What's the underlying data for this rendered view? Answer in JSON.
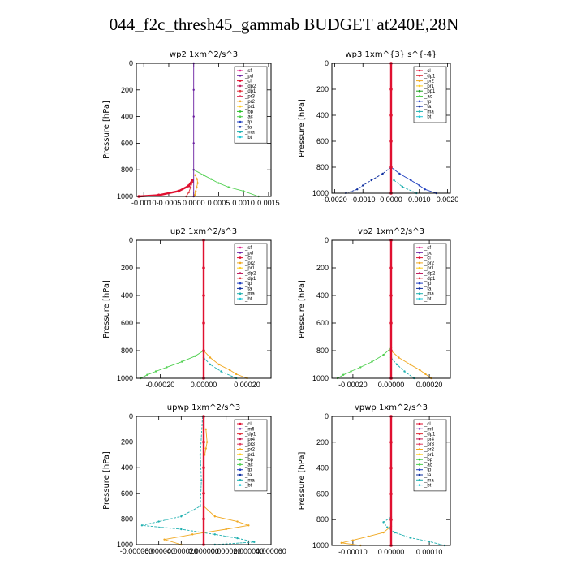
{
  "page": {
    "title": "044_f2c_thresh45_gammab  BUDGET at240E,28N"
  },
  "colors": {
    "sf": "#e0208a",
    "pd": "#6a1fa0",
    "cl": "#e01030",
    "dp2": "#c02060",
    "dp1": "#e0303a",
    "pr4": "#c01850",
    "pr3": "#e04060",
    "pr2": "#f0a820",
    "pr1": "#ffcc20",
    "bp": "#28c028",
    "bp1": "#20a020",
    "ac": "#50d050",
    "tp": "#2040c0",
    "ta": "#1030a0",
    "ma": "#20b0b0",
    "bt": "#20c8d8",
    "mfl": "#7a30b0"
  },
  "chart_data": [
    {
      "type": "line",
      "title": "wp2  1xm^2/s^3",
      "ylabel": "Pressure [hPa]",
      "ylim": [
        1000,
        0
      ],
      "yticks": [
        0,
        200,
        400,
        600,
        800,
        1000
      ],
      "xlim": [
        -0.00115,
        0.00155
      ],
      "xticks": [
        -0.001,
        -0.0005,
        0.0,
        0.0005,
        0.001,
        0.0015
      ],
      "xtick_labels": [
        "-0.0010",
        "-0.0005",
        "0.0000",
        "0.0005",
        "0.0010",
        "0.0015"
      ],
      "legend": [
        "_sf",
        "_pd",
        "_cl",
        "_dp2",
        "_dp1",
        "_pr3",
        "_pr2",
        "_pr1",
        "_bp",
        "_ac",
        "_tp",
        "_ta",
        "_ma",
        "_bt"
      ],
      "series": [
        {
          "key": "pr2",
          "name": "_pr2",
          "y": [
            840,
            870,
            900,
            930,
            960,
            990,
            1000
          ],
          "x": [
            3e-05,
            7e-05,
            8e-05,
            6e-05,
            4e-05,
            2e-05,
            0.0
          ]
        },
        {
          "key": "ac",
          "name": "_ac",
          "y": [
            800,
            840,
            870,
            900,
            930,
            960,
            1000
          ],
          "x": [
            0.0,
            0.0002,
            0.00035,
            0.0005,
            0.0007,
            0.001,
            0.0013
          ]
        },
        {
          "key": "cl",
          "name": "_cl",
          "y": [
            880,
            920,
            960,
            990,
            1000
          ],
          "x": [
            -3e-05,
            -0.0001,
            -0.0003,
            -0.0007,
            -0.0011
          ]
        },
        {
          "key": "dp1",
          "name": "_dp1",
          "y": [
            890,
            930,
            970,
            1000
          ],
          "x": [
            -2e-05,
            -6e-05,
            -0.0001,
            -0.00015
          ]
        },
        {
          "key": "pd",
          "name": "_pd",
          "y": [
            0,
            200,
            400,
            600,
            800,
            1000
          ],
          "x": [
            0.0,
            0.0,
            0.0,
            0.0,
            0.0,
            0.0
          ]
        }
      ]
    },
    {
      "type": "line",
      "title": "wp3  1xm^{3} s^{-4}",
      "ylabel": "Pressure [hPa]",
      "ylim": [
        1000,
        0
      ],
      "yticks": [
        0,
        200,
        400,
        600,
        800,
        1000
      ],
      "xlim": [
        -0.0021,
        0.0021
      ],
      "xticks": [
        -0.002,
        -0.001,
        0.0,
        0.001,
        0.002
      ],
      "xtick_labels": [
        "-0.0020",
        "-0.0010",
        "0.0000",
        "0.0010",
        "0.0020"
      ],
      "legend": [
        "_cl",
        "_dp1",
        "_pr2",
        "_pr1",
        "_bp1",
        "_ac",
        "_tp",
        "_ta",
        "_ma",
        "_bt"
      ],
      "series": [
        {
          "key": "ta",
          "name": "_ta",
          "y": [
            800,
            850,
            900,
            940,
            970,
            1000
          ],
          "x": [
            0.0,
            -0.0003,
            -0.0007,
            -0.001,
            -0.0012,
            -0.0016
          ]
        },
        {
          "key": "tp",
          "name": "_tp",
          "y": [
            800,
            850,
            900,
            940,
            970,
            1000
          ],
          "x": [
            0.0,
            0.0003,
            0.0007,
            0.001,
            0.0012,
            0.0016
          ]
        },
        {
          "key": "ma",
          "name": "_ma",
          "y": [
            900,
            950,
            1000
          ],
          "x": [
            0.0001,
            0.0004,
            0.0009
          ]
        },
        {
          "key": "cl",
          "name": "_cl",
          "y": [
            0,
            200,
            400,
            600,
            800,
            1000
          ],
          "x": [
            0.0,
            0.0,
            0.0,
            0.0,
            0.0,
            0.0
          ]
        }
      ]
    },
    {
      "type": "line",
      "title": "up2  1xm^2/s^3",
      "ylabel": "Pressure [hPa]",
      "ylim": [
        1000,
        0
      ],
      "yticks": [
        0,
        200,
        400,
        600,
        800,
        1000
      ],
      "xlim": [
        -0.00031,
        0.00031
      ],
      "xticks": [
        -0.0002,
        0.0,
        0.0002
      ],
      "xtick_labels": [
        "-0.00020",
        "0.00000",
        "0.00020"
      ],
      "legend": [
        "_sf",
        "_pd",
        "_cl",
        "_pr2",
        "_pr1",
        "_dp2",
        "_dp1",
        "_tp",
        "_ta",
        "_ma",
        "_bt"
      ],
      "series": [
        {
          "key": "ac",
          "name": "_ac",
          "y": [
            800,
            840,
            880,
            920,
            950,
            975,
            1000
          ],
          "x": [
            0.0,
            -4e-05,
            -0.0001,
            -0.00017,
            -0.00022,
            -0.00026,
            -0.00029
          ]
        },
        {
          "key": "pr2",
          "name": "_pr2",
          "y": [
            800,
            850,
            900,
            940,
            970,
            1000
          ],
          "x": [
            0.0,
            3e-05,
            7e-05,
            0.00012,
            0.00015,
            0.0002
          ]
        },
        {
          "key": "ma",
          "name": "_ma",
          "y": [
            850,
            900,
            950,
            1000
          ],
          "x": [
            0.0,
            3e-05,
            8e-05,
            0.00015
          ]
        },
        {
          "key": "cl",
          "name": "_cl",
          "y": [
            0,
            200,
            400,
            600,
            800,
            1000
          ],
          "x": [
            0.0,
            0.0,
            0.0,
            0.0,
            0.0,
            0.0
          ]
        }
      ]
    },
    {
      "type": "line",
      "title": "vp2  1xm^2/s^3",
      "ylabel": "Pressure [hPa]",
      "ylim": [
        1000,
        0
      ],
      "yticks": [
        0,
        200,
        400,
        600,
        800,
        1000
      ],
      "xlim": [
        -0.00031,
        0.00031
      ],
      "xticks": [
        -0.0002,
        0.0,
        0.0002
      ],
      "xtick_labels": [
        "-0.00020",
        "0.00000",
        "0.00020"
      ],
      "legend": [
        "_sf",
        "_pd",
        "_cl",
        "_pr2",
        "_pr1",
        "_dp2",
        "_dp1",
        "_tp",
        "_ta",
        "_ma",
        "_bt"
      ],
      "series": [
        {
          "key": "ac",
          "name": "_ac",
          "y": [
            780,
            830,
            880,
            920,
            950,
            975,
            1000
          ],
          "x": [
            0.0,
            -4e-05,
            -0.0001,
            -0.00016,
            -0.00021,
            -0.00025,
            -0.00028
          ]
        },
        {
          "key": "pr2",
          "name": "_pr2",
          "y": [
            800,
            850,
            900,
            940,
            970,
            1000
          ],
          "x": [
            0.0,
            4e-05,
            0.0001,
            0.00015,
            0.00018,
            0.00021
          ]
        },
        {
          "key": "ma",
          "name": "_ma",
          "y": [
            850,
            900,
            950,
            1000
          ],
          "x": [
            0.0,
            3e-05,
            7e-05,
            0.00012
          ]
        },
        {
          "key": "cl",
          "name": "_cl",
          "y": [
            0,
            200,
            400,
            600,
            800,
            1000
          ],
          "x": [
            0.0,
            0.0,
            0.0,
            0.0,
            0.0,
            0.0
          ]
        }
      ]
    },
    {
      "type": "line",
      "title": "upwp  1xm^2/s^3",
      "ylabel": "Pressure [hPa]",
      "ylim": [
        1000,
        0
      ],
      "yticks": [
        0,
        200,
        400,
        600,
        800,
        1000
      ],
      "xlim": [
        -6e-05,
        6e-05
      ],
      "xticks": [
        -6e-05,
        -4e-05,
        -2e-05,
        0.0,
        2e-05,
        4e-05,
        6e-05
      ],
      "xtick_labels": [
        "-0.000060",
        "-0.000040",
        "-0.000020",
        "0.000000",
        "0.000020",
        "0.000040",
        "0.000060"
      ],
      "legend": [
        "_cl",
        "_mfl",
        "_dp1",
        "_pr4",
        "_pr3",
        "_pr2",
        "_pr1",
        "_bp",
        "_ac",
        "_tp",
        "_ta",
        "_ma",
        "_bt"
      ],
      "series": [
        {
          "key": "ma",
          "name": "_ma",
          "y": [
            0,
            300,
            500,
            700,
            780,
            820,
            850,
            880,
            920,
            950,
            980,
            1000
          ],
          "x": [
            -1e-06,
            -3e-06,
            -2e-06,
            -3e-06,
            -2e-05,
            -4e-05,
            -5.5e-05,
            -2e-05,
            1e-05,
            3e-05,
            4.5e-05,
            1e-05
          ]
        },
        {
          "key": "pr2",
          "name": "_pr2",
          "y": [
            700,
            780,
            820,
            850,
            880,
            920,
            960,
            1000
          ],
          "x": [
            0.0,
            1e-05,
            3e-05,
            4e-05,
            2e-05,
            -1e-05,
            -3.5e-05,
            -2e-05
          ]
        },
        {
          "key": "pr2",
          "name": "_pr2",
          "y": [
            100,
            200,
            250,
            300
          ],
          "x": [
            2e-06,
            3e-06,
            2e-06,
            1e-06
          ]
        },
        {
          "key": "cl",
          "name": "_cl",
          "y": [
            0,
            200,
            400,
            600,
            800,
            1000
          ],
          "x": [
            0.0,
            0.0,
            0.0,
            0.0,
            0.0,
            0.0
          ]
        }
      ]
    },
    {
      "type": "line",
      "title": "vpwp  1xm^2/s^3",
      "ylabel": "Pressure [hPa]",
      "ylim": [
        1000,
        0
      ],
      "yticks": [
        0,
        200,
        400,
        600,
        800,
        1000
      ],
      "xlim": [
        -0.000155,
        0.000155
      ],
      "xticks": [
        -0.0001,
        0.0,
        0.0001
      ],
      "xtick_labels": [
        "-0.00010",
        "0.00000",
        "0.00010"
      ],
      "legend": [
        "_cl",
        "_mfl",
        "_dp1",
        "_pr4",
        "_pr3",
        "_pr2",
        "_pr1",
        "_bp",
        "_ac",
        "_tp",
        "_ta",
        "_ma",
        "_bt"
      ],
      "series": [
        {
          "key": "pr2",
          "name": "_pr2",
          "y": [
            850,
            900,
            930,
            960,
            980,
            1000
          ],
          "x": [
            0.0,
            -2e-05,
            -6e-05,
            -0.0001,
            -0.00013,
            -8e-05
          ]
        },
        {
          "key": "ma",
          "name": "_ma",
          "y": [
            780,
            820,
            860,
            900,
            940,
            970,
            1000
          ],
          "x": [
            0.0,
            -2e-05,
            -1e-05,
            1e-05,
            5e-05,
            0.0001,
            0.00014
          ]
        },
        {
          "key": "cl",
          "name": "_cl",
          "y": [
            0,
            200,
            400,
            600,
            800,
            1000
          ],
          "x": [
            0.0,
            0.0,
            0.0,
            0.0,
            0.0,
            0.0
          ]
        }
      ]
    }
  ]
}
